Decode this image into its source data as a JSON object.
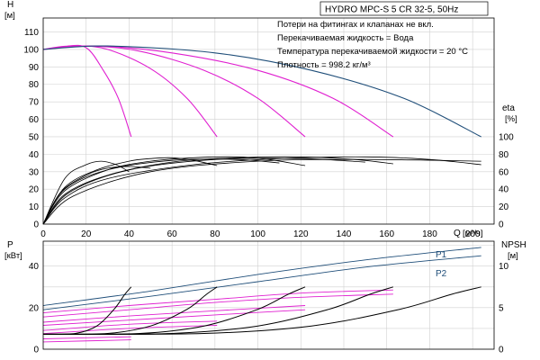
{
  "chart_data": {
    "title": "HYDRO MPC-S 5 CR 32-5, 50Hz",
    "notes": [
      "Потери на фитингах и клапанах не вкл.",
      "Перекачиваемая жидкость = Вода",
      "Температура перекачиваемой жидкости = 20 °C",
      "Плотность = 998.2 кг/м³"
    ],
    "colors": {
      "magenta": "#e020d0",
      "navy": "#1f4e79",
      "black": "#000000",
      "grid": "#d0d0d0"
    },
    "x_axis": {
      "label": "Q",
      "unit": "[м³/ч]",
      "ticks": [
        0,
        20,
        40,
        60,
        80,
        100,
        120,
        140,
        160,
        180,
        200
      ],
      "range": [
        0,
        210
      ]
    },
    "upper": {
      "type": "line",
      "y_left": {
        "label": "H",
        "unit": "[м]",
        "ticks": [
          0,
          10,
          20,
          30,
          40,
          50,
          60,
          70,
          80,
          90,
          100,
          110
        ],
        "range": [
          0,
          118
        ]
      },
      "y_right": {
        "label": "eta",
        "unit": "[%]",
        "ticks": [
          0,
          20,
          40,
          60,
          80,
          100
        ]
      },
      "head_curves": [
        {
          "color": "magenta",
          "points": [
            [
              0,
              100
            ],
            [
              10,
              101.8
            ],
            [
              20,
              101
            ],
            [
              28,
              88
            ],
            [
              35,
              72
            ],
            [
              41,
              50
            ]
          ]
        },
        {
          "color": "magenta",
          "points": [
            [
              0,
              100
            ],
            [
              15,
              102
            ],
            [
              30,
              100
            ],
            [
              50,
              89
            ],
            [
              67,
              72
            ],
            [
              81,
              50
            ]
          ]
        },
        {
          "color": "magenta",
          "points": [
            [
              0,
              100
            ],
            [
              20,
              102
            ],
            [
              45,
              99
            ],
            [
              75,
              88
            ],
            [
              100,
              72
            ],
            [
              122,
              50
            ]
          ]
        },
        {
          "color": "magenta",
          "points": [
            [
              0,
              100
            ],
            [
              25,
              102
            ],
            [
              60,
              98
            ],
            [
              100,
              88
            ],
            [
              135,
              72
            ],
            [
              163,
              50
            ]
          ]
        },
        {
          "color": "navy",
          "points": [
            [
              0,
              100
            ],
            [
              30,
              102
            ],
            [
              80,
              98
            ],
            [
              125,
              88
            ],
            [
              168,
              72
            ],
            [
              204,
              50
            ]
          ]
        }
      ],
      "efficiency_curves": [
        {
          "color": "black",
          "points": [
            [
              0,
              0
            ],
            [
              10,
              52
            ],
            [
              20,
              68
            ],
            [
              27,
              72
            ],
            [
              34,
              68
            ],
            [
              40,
              60
            ]
          ]
        },
        {
          "color": "black",
          "points": [
            [
              0,
              0
            ],
            [
              10,
              42
            ],
            [
              25,
              62
            ],
            [
              40,
              72
            ],
            [
              50,
              75
            ],
            [
              60,
              76
            ],
            [
              70,
              73
            ],
            [
              81,
              67
            ]
          ]
        },
        {
          "color": "black",
          "points": [
            [
              0,
              0
            ],
            [
              10,
              38
            ],
            [
              30,
              62
            ],
            [
              50,
              72
            ],
            [
              70,
              76
            ],
            [
              90,
              77
            ],
            [
              105,
              74
            ],
            [
              122,
              67
            ]
          ]
        },
        {
          "color": "black",
          "points": [
            [
              0,
              0
            ],
            [
              10,
              34
            ],
            [
              30,
              56
            ],
            [
              60,
              71
            ],
            [
              90,
              76
            ],
            [
              120,
              77
            ],
            [
              145,
              74
            ],
            [
              163,
              69
            ]
          ]
        },
        {
          "color": "black",
          "points": [
            [
              0,
              0
            ],
            [
              10,
              30
            ],
            [
              30,
              52
            ],
            [
              70,
              68
            ],
            [
              110,
              75
            ],
            [
              150,
              77
            ],
            [
              180,
              74
            ],
            [
              204,
              68
            ]
          ]
        },
        {
          "color": "black",
          "points": [
            [
              0,
              0
            ],
            [
              8,
              36
            ],
            [
              20,
              56
            ],
            [
              30,
              64
            ],
            [
              40,
              66
            ],
            [
              50,
              64
            ]
          ]
        },
        {
          "color": "black",
          "points": [
            [
              0,
              0
            ],
            [
              10,
              40
            ],
            [
              30,
              62
            ],
            [
              60,
              73
            ],
            [
              90,
              74
            ],
            [
              110,
              70
            ]
          ]
        },
        {
          "color": "black",
          "points": [
            [
              0,
              0
            ],
            [
              12,
              36
            ],
            [
              40,
              62
            ],
            [
              80,
              74
            ],
            [
              120,
              75
            ],
            [
              150,
              71
            ]
          ]
        },
        {
          "color": "black",
          "points": [
            [
              0,
              0
            ],
            [
              14,
              32
            ],
            [
              50,
              60
            ],
            [
              100,
              72
            ],
            [
              150,
              74
            ],
            [
              204,
              72
            ]
          ]
        }
      ]
    },
    "lower": {
      "type": "line",
      "y_left": {
        "label": "P",
        "unit": "[кВт]",
        "ticks": [
          0,
          20,
          40
        ],
        "range": [
          0,
          52
        ]
      },
      "y_right": {
        "label": "NPSH",
        "unit": "[м]",
        "ticks": [
          0,
          5,
          10
        ],
        "range": [
          0,
          13
        ]
      },
      "power_curves": [
        {
          "name": "P1",
          "color": "navy",
          "points": [
            [
              0,
              21
            ],
            [
              50,
              28
            ],
            [
              100,
              36
            ],
            [
              150,
              43
            ],
            [
              204,
              49
            ]
          ]
        },
        {
          "name": "P2",
          "color": "navy",
          "points": [
            [
              0,
              19
            ],
            [
              50,
              25.5
            ],
            [
              100,
              32.5
            ],
            [
              150,
              39.5
            ],
            [
              204,
              45
            ]
          ]
        },
        {
          "color": "magenta",
          "points": [
            [
              0,
              17.5
            ],
            [
              40,
              21
            ],
            [
              80,
              24
            ],
            [
              120,
              27
            ],
            [
              163,
              28.5
            ]
          ]
        },
        {
          "color": "magenta",
          "points": [
            [
              0,
              15.5
            ],
            [
              40,
              19
            ],
            [
              80,
              22.5
            ],
            [
              120,
              25
            ],
            [
              163,
              26.5
            ]
          ]
        },
        {
          "color": "magenta",
          "points": [
            [
              0,
              13
            ],
            [
              40,
              16
            ],
            [
              80,
              18.5
            ],
            [
              122,
              21
            ]
          ]
        },
        {
          "color": "magenta",
          "points": [
            [
              0,
              11.5
            ],
            [
              40,
              14
            ],
            [
              80,
              16.5
            ],
            [
              122,
              19
            ]
          ]
        },
        {
          "color": "magenta",
          "points": [
            [
              0,
              9
            ],
            [
              40,
              12
            ],
            [
              81,
              13.5
            ]
          ]
        },
        {
          "color": "magenta",
          "points": [
            [
              0,
              7.5
            ],
            [
              40,
              10
            ],
            [
              81,
              11.5
            ]
          ]
        },
        {
          "color": "magenta",
          "points": [
            [
              0,
              5
            ],
            [
              41,
              6
            ]
          ]
        },
        {
          "color": "magenta",
          "points": [
            [
              0,
              3.5
            ],
            [
              41,
              4.5
            ]
          ]
        }
      ],
      "npsh_curves": [
        {
          "color": "black",
          "points": [
            [
              0,
              1.8
            ],
            [
              15,
              1.9
            ],
            [
              25,
              2.8
            ],
            [
              33,
              4.8
            ],
            [
              38,
              6.6
            ],
            [
              41,
              7.5
            ]
          ]
        },
        {
          "color": "black",
          "points": [
            [
              0,
              1.8
            ],
            [
              30,
              1.9
            ],
            [
              50,
              2.8
            ],
            [
              67,
              4.8
            ],
            [
              76,
              6.6
            ],
            [
              81,
              7.5
            ]
          ]
        },
        {
          "color": "black",
          "points": [
            [
              0,
              1.8
            ],
            [
              45,
              1.9
            ],
            [
              75,
              2.8
            ],
            [
              100,
              4.8
            ],
            [
              114,
              6.6
            ],
            [
              122,
              7.5
            ]
          ]
        },
        {
          "color": "black",
          "points": [
            [
              0,
              1.8
            ],
            [
              60,
              1.9
            ],
            [
              100,
              2.8
            ],
            [
              133,
              4.8
            ],
            [
              152,
              6.6
            ],
            [
              163,
              7.5
            ]
          ]
        },
        {
          "color": "black",
          "points": [
            [
              0,
              1.8
            ],
            [
              75,
              1.9
            ],
            [
              125,
              2.8
            ],
            [
              166,
              4.8
            ],
            [
              190,
              6.6
            ],
            [
              204,
              7.5
            ]
          ]
        }
      ]
    }
  }
}
